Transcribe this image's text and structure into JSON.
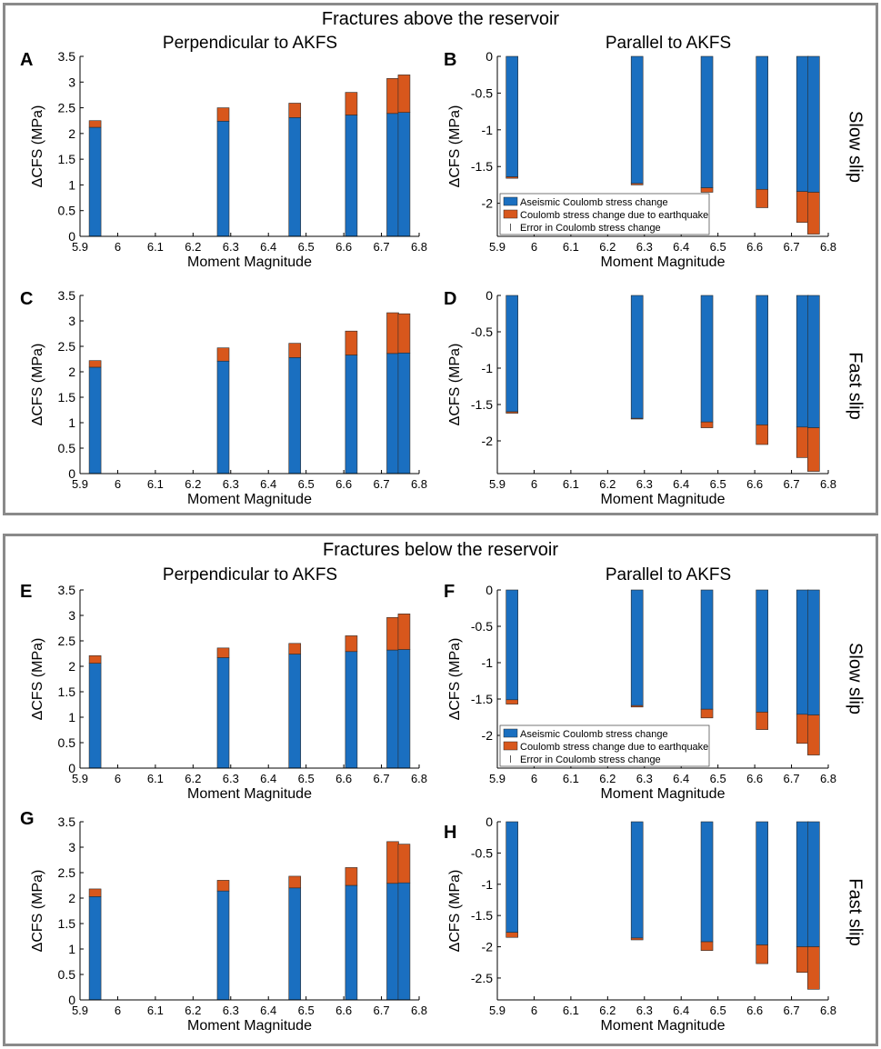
{
  "colors": {
    "aseismic": "#1a6fc0",
    "earthquake": "#d8571c",
    "axis": "#000000",
    "border": "#8a8a8a"
  },
  "groups": [
    {
      "title": "Fractures above the reservoir"
    },
    {
      "title": "Fractures below the reservoir"
    }
  ],
  "column_titles": {
    "perpendicular": "Perpendicular to AKFS",
    "parallel": "Parallel to AKFS"
  },
  "row_labels": {
    "slow": "Slow slip",
    "fast": "Fast slip"
  },
  "legend": {
    "aseismic": "Aseismic Coulomb stress change",
    "earthquake": "Coulomb stress change due to earthquake",
    "error": "Error in Coulomb stress change"
  },
  "panel_letters": [
    "A",
    "B",
    "C",
    "D",
    "E",
    "F",
    "G",
    "H"
  ],
  "chart_data": [
    {
      "panel": "A",
      "type": "bar",
      "stacked": true,
      "xlabel": "Moment Magnitude",
      "ylabel": "ΔCFS (MPa)",
      "xlim": [
        5.9,
        6.8
      ],
      "ylim": [
        0,
        3.5
      ],
      "xticks": [
        "5.9",
        "6",
        "6.1",
        "6.2",
        "6.3",
        "6.4",
        "6.5",
        "6.6",
        "6.7",
        "6.8"
      ],
      "yticks": [
        "0",
        "0.5",
        "1",
        "1.5",
        "2",
        "2.5",
        "3",
        "3.5"
      ],
      "x": [
        5.94,
        6.28,
        6.47,
        6.62,
        6.73,
        6.76
      ],
      "series": [
        {
          "name": "Aseismic Coulomb stress change",
          "values": [
            2.12,
            2.24,
            2.31,
            2.36,
            2.39,
            2.41
          ]
        },
        {
          "name": "Coulomb stress change due to earthquake",
          "values": [
            0.13,
            0.26,
            0.28,
            0.44,
            0.68,
            0.73
          ]
        }
      ]
    },
    {
      "panel": "B",
      "type": "bar",
      "stacked": true,
      "xlabel": "Moment Magnitude",
      "ylabel": "ΔCFS (MPa)",
      "xlim": [
        5.9,
        6.8
      ],
      "ylim": [
        -2.45,
        0
      ],
      "xticks": [
        "5.9",
        "6",
        "6.1",
        "6.2",
        "6.3",
        "6.4",
        "6.5",
        "6.6",
        "6.7",
        "6.8"
      ],
      "yticks": [
        "0",
        "-0.5",
        "-1",
        "-1.5",
        "-2"
      ],
      "x": [
        5.94,
        6.28,
        6.47,
        6.62,
        6.73,
        6.76
      ],
      "series": [
        {
          "name": "Aseismic Coulomb stress change",
          "values": [
            -1.64,
            -1.73,
            -1.79,
            -1.81,
            -1.84,
            -1.85
          ]
        },
        {
          "name": "Coulomb stress change due to earthquake",
          "values": [
            -0.02,
            -0.02,
            -0.06,
            -0.25,
            -0.42,
            -0.57
          ]
        }
      ],
      "legend": true
    },
    {
      "panel": "C",
      "type": "bar",
      "stacked": true,
      "xlabel": "Moment Magnitude",
      "ylabel": "ΔCFS (MPa)",
      "xlim": [
        5.9,
        6.8
      ],
      "ylim": [
        0,
        3.5
      ],
      "xticks": [
        "5.9",
        "6",
        "6.1",
        "6.2",
        "6.3",
        "6.4",
        "6.5",
        "6.6",
        "6.7",
        "6.8"
      ],
      "yticks": [
        "0",
        "0.5",
        "1",
        "1.5",
        "2",
        "2.5",
        "3",
        "3.5"
      ],
      "x": [
        5.94,
        6.28,
        6.47,
        6.62,
        6.73,
        6.76
      ],
      "series": [
        {
          "name": "Aseismic Coulomb stress change",
          "values": [
            2.09,
            2.21,
            2.28,
            2.33,
            2.36,
            2.37
          ]
        },
        {
          "name": "Coulomb stress change due to earthquake",
          "values": [
            0.13,
            0.26,
            0.28,
            0.47,
            0.8,
            0.77
          ]
        }
      ]
    },
    {
      "panel": "D",
      "type": "bar",
      "stacked": true,
      "xlabel": "Moment Magnitude",
      "ylabel": "ΔCFS (MPa)",
      "xlim": [
        5.9,
        6.8
      ],
      "ylim": [
        -2.45,
        0
      ],
      "xticks": [
        "5.9",
        "6",
        "6.1",
        "6.2",
        "6.3",
        "6.4",
        "6.5",
        "6.6",
        "6.7",
        "6.8"
      ],
      "yticks": [
        "0",
        "-0.5",
        "-1",
        "-1.5",
        "-2"
      ],
      "x": [
        5.94,
        6.28,
        6.47,
        6.62,
        6.73,
        6.76
      ],
      "series": [
        {
          "name": "Aseismic Coulomb stress change",
          "values": [
            -1.6,
            -1.69,
            -1.74,
            -1.78,
            -1.81,
            -1.82
          ]
        },
        {
          "name": "Coulomb stress change due to earthquake",
          "values": [
            -0.02,
            -0.01,
            -0.08,
            -0.27,
            -0.42,
            -0.6
          ]
        }
      ]
    },
    {
      "panel": "E",
      "type": "bar",
      "stacked": true,
      "xlabel": "Moment Magnitude",
      "ylabel": "ΔCFS (MPa)",
      "xlim": [
        5.9,
        6.8
      ],
      "ylim": [
        0,
        3.5
      ],
      "xticks": [
        "5.9",
        "6",
        "6.1",
        "6.2",
        "6.3",
        "6.4",
        "6.5",
        "6.6",
        "6.7",
        "6.8"
      ],
      "yticks": [
        "0",
        "0.5",
        "1",
        "1.5",
        "2",
        "2.5",
        "3",
        "3.5"
      ],
      "x": [
        5.94,
        6.28,
        6.47,
        6.62,
        6.73,
        6.76
      ],
      "series": [
        {
          "name": "Aseismic Coulomb stress change",
          "values": [
            2.06,
            2.17,
            2.24,
            2.29,
            2.32,
            2.33
          ]
        },
        {
          "name": "Coulomb stress change due to earthquake",
          "values": [
            0.15,
            0.19,
            0.21,
            0.31,
            0.64,
            0.7
          ]
        }
      ]
    },
    {
      "panel": "F",
      "type": "bar",
      "stacked": true,
      "xlabel": "Moment Magnitude",
      "ylabel": "ΔCFS (MPa)",
      "xlim": [
        5.9,
        6.8
      ],
      "ylim": [
        -2.45,
        0
      ],
      "xticks": [
        "5.9",
        "6",
        "6.1",
        "6.2",
        "6.3",
        "6.4",
        "6.5",
        "6.6",
        "6.7",
        "6.8"
      ],
      "yticks": [
        "0",
        "-0.5",
        "-1",
        "-1.5",
        "-2"
      ],
      "x": [
        5.94,
        6.28,
        6.47,
        6.62,
        6.73,
        6.76
      ],
      "series": [
        {
          "name": "Aseismic Coulomb stress change",
          "values": [
            -1.51,
            -1.59,
            -1.64,
            -1.68,
            -1.71,
            -1.72
          ]
        },
        {
          "name": "Coulomb stress change due to earthquake",
          "values": [
            -0.06,
            -0.02,
            -0.12,
            -0.24,
            -0.4,
            -0.55
          ]
        }
      ],
      "legend": true
    },
    {
      "panel": "G",
      "type": "bar",
      "stacked": true,
      "xlabel": "Moment Magnitude",
      "ylabel": "ΔCFS (MPa)",
      "xlim": [
        5.9,
        6.8
      ],
      "ylim": [
        0,
        3.5
      ],
      "xticks": [
        "5.9",
        "6",
        "6.1",
        "6.2",
        "6.3",
        "6.4",
        "6.5",
        "6.6",
        "6.7",
        "6.8"
      ],
      "yticks": [
        "0",
        "0.5",
        "1",
        "1.5",
        "2",
        "2.5",
        "3",
        "3.5"
      ],
      "x": [
        5.94,
        6.28,
        6.47,
        6.62,
        6.73,
        6.76
      ],
      "series": [
        {
          "name": "Aseismic Coulomb stress change",
          "values": [
            2.03,
            2.14,
            2.2,
            2.25,
            2.29,
            2.3
          ]
        },
        {
          "name": "Coulomb stress change due to earthquake",
          "values": [
            0.15,
            0.21,
            0.23,
            0.35,
            0.82,
            0.76
          ]
        }
      ]
    },
    {
      "panel": "H",
      "type": "bar",
      "stacked": true,
      "xlabel": "Moment Magnitude",
      "ylabel": "ΔCFS (MPa)",
      "xlim": [
        5.9,
        6.8
      ],
      "ylim": [
        -2.85,
        0
      ],
      "xticks": [
        "5.9",
        "6",
        "6.1",
        "6.2",
        "6.3",
        "6.4",
        "6.5",
        "6.6",
        "6.7",
        "6.8"
      ],
      "yticks": [
        "0",
        "-0.5",
        "-1",
        "-1.5",
        "-2",
        "-2.5"
      ],
      "x": [
        5.94,
        6.28,
        6.47,
        6.62,
        6.73,
        6.76
      ],
      "series": [
        {
          "name": "Aseismic Coulomb stress change",
          "values": [
            -1.77,
            -1.86,
            -1.92,
            -1.97,
            -2.0,
            -2.0
          ]
        },
        {
          "name": "Coulomb stress change due to earthquake",
          "values": [
            -0.08,
            -0.03,
            -0.14,
            -0.3,
            -0.41,
            -0.68
          ]
        }
      ]
    }
  ]
}
